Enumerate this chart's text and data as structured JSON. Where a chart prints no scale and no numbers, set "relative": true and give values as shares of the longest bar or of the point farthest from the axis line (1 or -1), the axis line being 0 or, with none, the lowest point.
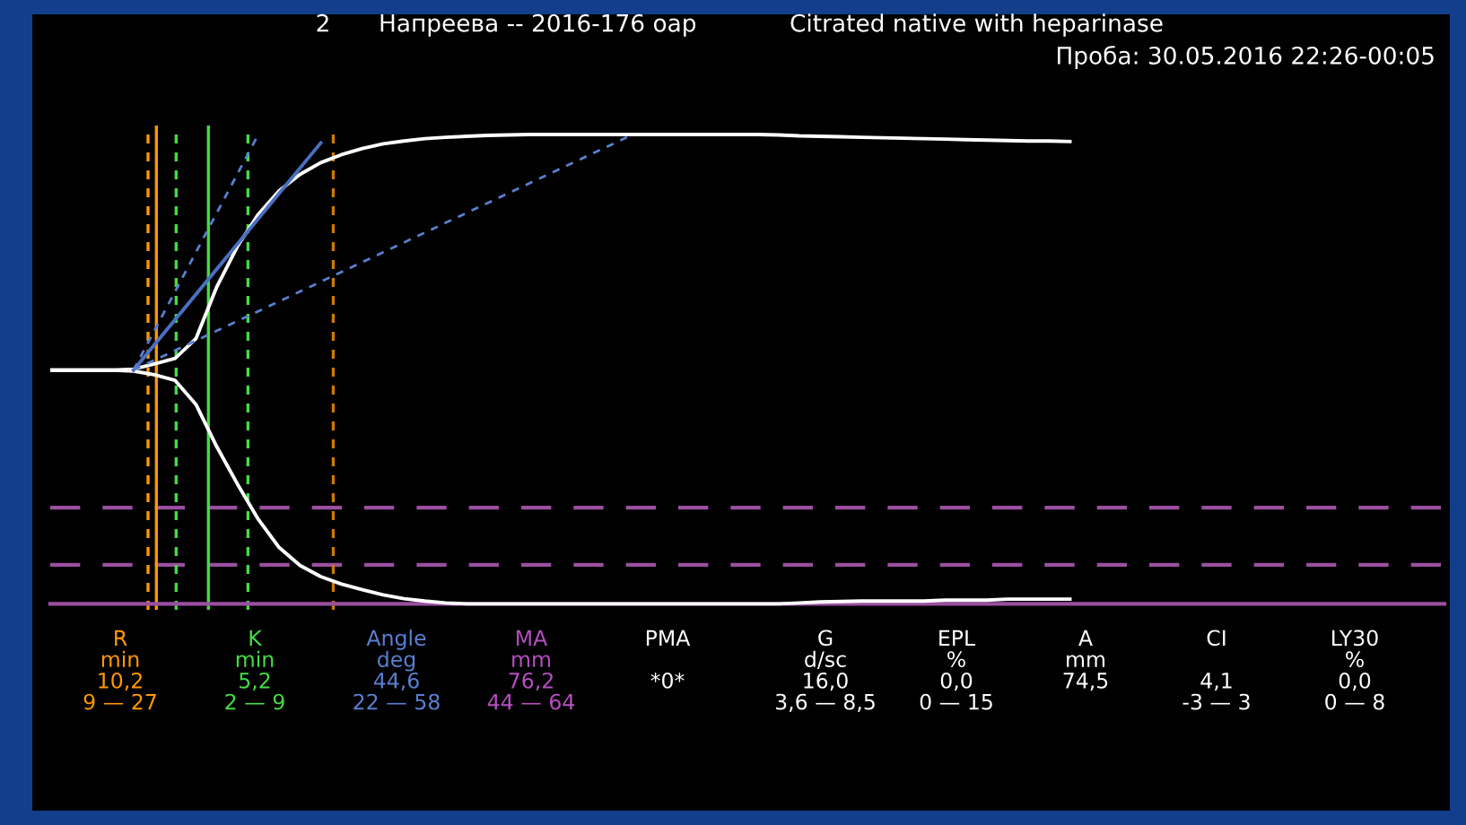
{
  "chart_data": {
    "type": "line",
    "relative": true,
    "title": "Citrated native with heparinase",
    "subtitle": "Проба: 30.05.2016 22:26-00:05",
    "categories": [
      null,
      null,
      null,
      null,
      null,
      null,
      null,
      null,
      null,
      null,
      null,
      null,
      null,
      null,
      null,
      null,
      null,
      null,
      null,
      null,
      null,
      null,
      null,
      null,
      null,
      null,
      null,
      null,
      null,
      null,
      null,
      null,
      null,
      null,
      null,
      null,
      null,
      null,
      null,
      null,
      null,
      null,
      null,
      null,
      null,
      null,
      null,
      null,
      null,
      null,
      null,
      null,
      null,
      null,
      null,
      null,
      null,
      null,
      null,
      null,
      null,
      null,
      null,
      null,
      null,
      null,
      null,
      null
    ],
    "series": [
      {
        "color": "#ffffff",
        "line_style": "solid",
        "values": [
          0.498,
          0.498,
          0.498,
          0.498,
          0.5,
          0.511,
          0.523,
          0.565,
          0.675,
          0.762,
          0.83,
          0.88,
          0.915,
          0.94,
          0.957,
          0.97,
          0.98,
          0.986,
          0.991,
          0.994,
          0.996,
          0.998,
          0.999,
          1.0,
          1.0,
          1.0,
          1.0,
          1.0,
          1.0,
          1.0,
          1.0,
          1.0,
          1.0,
          1.0,
          1.0,
          0.999,
          0.997,
          0.996,
          0.995,
          0.994,
          0.993,
          0.992,
          0.991,
          0.99,
          0.989,
          0.988,
          0.987,
          0.986,
          0.986,
          0.985,
          null,
          null,
          null,
          null,
          null,
          null,
          null,
          null,
          null,
          null,
          null,
          null,
          null,
          null,
          null,
          null,
          null,
          null
        ]
      },
      {
        "color": "#ffffff",
        "line_style": "solid",
        "values": [
          0.498,
          0.498,
          0.498,
          0.498,
          0.496,
          0.488,
          0.476,
          0.425,
          0.335,
          0.255,
          0.18,
          0.12,
          0.082,
          0.058,
          0.042,
          0.03,
          0.019,
          0.011,
          0.006,
          0.002,
          0.0,
          0.0,
          0.0,
          0.0,
          0.0,
          0.0,
          0.0,
          0.0,
          0.0,
          0.0,
          0.0,
          0.0,
          0.0,
          0.0,
          0.0,
          0.0,
          0.002,
          0.004,
          0.005,
          0.006,
          0.006,
          0.006,
          0.006,
          0.008,
          0.008,
          0.008,
          0.01,
          0.01,
          0.01,
          0.01,
          null,
          null,
          null,
          null,
          null,
          null,
          null,
          null,
          null,
          null,
          null,
          null,
          null,
          null,
          null,
          null,
          null,
          null
        ]
      },
      {
        "color": "#4a6fc0",
        "line_style": "solid",
        "values": [
          null,
          null,
          null,
          null,
          0.498,
          null,
          null,
          null,
          null,
          null,
          null,
          null,
          null,
          0.982,
          null,
          null,
          null,
          null,
          null,
          null,
          null,
          null,
          null,
          null,
          null,
          null,
          null,
          null,
          null,
          null,
          null,
          null,
          null,
          null,
          null,
          null,
          null,
          null,
          null,
          null,
          null,
          null,
          null,
          null,
          null,
          null,
          null,
          null,
          null,
          null,
          null,
          null,
          null,
          null,
          null,
          null,
          null,
          null,
          null,
          null,
          null,
          null,
          null,
          null,
          null,
          null,
          null,
          null
        ]
      },
      {
        "color": "#5a7fd0",
        "line_style": "dashed",
        "values": [
          null,
          null,
          null,
          null,
          0.498,
          null,
          null,
          null,
          null,
          null,
          1.0,
          null,
          null,
          null,
          null,
          null,
          null,
          null,
          null,
          null,
          null,
          null,
          null,
          null,
          null,
          null,
          null,
          null,
          null,
          null,
          null,
          null,
          null,
          null,
          null,
          null,
          null,
          null,
          null,
          null,
          null,
          null,
          null,
          null,
          null,
          null,
          null,
          null,
          null,
          null,
          null,
          null,
          null,
          null,
          null,
          null,
          null,
          null,
          null,
          null,
          null,
          null,
          null,
          null,
          null,
          null,
          null,
          null
        ]
      },
      {
        "color": "#5a7fd0",
        "line_style": "dashed",
        "values": [
          null,
          null,
          null,
          null,
          0.498,
          null,
          null,
          null,
          null,
          null,
          null,
          null,
          null,
          null,
          null,
          null,
          null,
          null,
          null,
          null,
          null,
          null,
          null,
          null,
          null,
          null,
          null,
          null,
          1.0,
          null,
          null,
          null,
          null,
          null,
          null,
          null,
          null,
          null,
          null,
          null,
          null,
          null,
          null,
          null,
          null,
          null,
          null,
          null,
          null,
          null,
          null,
          null,
          null,
          null,
          null,
          null,
          null,
          null,
          null,
          null,
          null,
          null,
          null,
          null,
          null,
          null,
          null,
          null
        ]
      }
    ],
    "ref_lines": [
      {
        "axis": "y",
        "value": 0.205,
        "color": "#9a4fa0",
        "line_style": "dashed"
      },
      {
        "axis": "y",
        "value": 0.083,
        "color": "#9a4fa0",
        "line_style": "dashed"
      }
    ],
    "annotations": [
      "2",
      "Напреева -- 2016-176 оар",
      "R\nmin\n10,2\n9 — 27",
      "K\nmin\n5,2\n2 — 9",
      "Angle\ndeg\n44,6\n22 — 58",
      "MA\nmm\n76,2\n44 — 64",
      "PMA\n\n*0*\n",
      "G\nd/sc\n16,0\n3,6 — 8,5",
      "EPL\n%\n0,0\n0 — 15",
      "A\nmm\n74,5\n",
      "CI\n\n4,1\n-3 — 3",
      "LY30\n%\n0,0\n0 — 8"
    ]
  }
}
